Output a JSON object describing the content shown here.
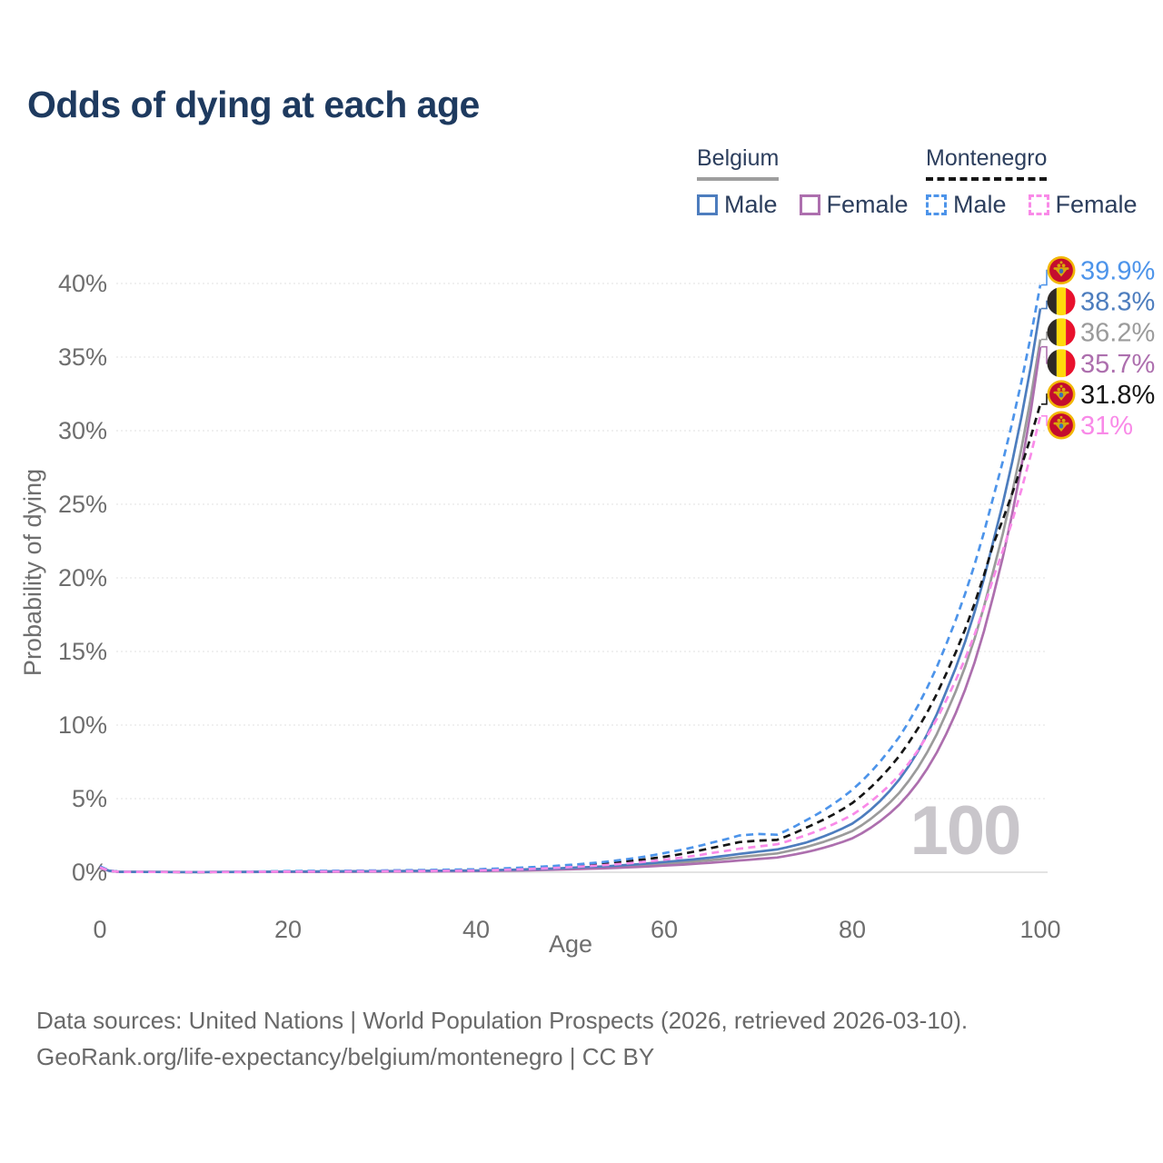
{
  "header": {
    "title": "Odds of dying at each age"
  },
  "legend": {
    "groups": [
      {
        "label": "Belgium",
        "line_style": "solid",
        "items": [
          {
            "label": "Male",
            "color": "#4d7dbe"
          },
          {
            "label": "Female",
            "color": "#ad6fae"
          }
        ]
      },
      {
        "label": "Montenegro",
        "line_style": "dashed",
        "items": [
          {
            "label": "Male",
            "color": "#4d94ea"
          },
          {
            "label": "Female",
            "color": "#f98ae8"
          }
        ]
      }
    ]
  },
  "chart_data": {
    "type": "line",
    "title": "Odds of dying at each age",
    "xlabel": "Age",
    "ylabel": "Probability of dying",
    "xlim": [
      0,
      100
    ],
    "ylim_percent": [
      0,
      40
    ],
    "x_ticks": [
      "0",
      "20",
      "40",
      "60",
      "80",
      "100"
    ],
    "y_ticks": [
      "0%",
      "5%",
      "10%",
      "15%",
      "20%",
      "25%",
      "30%",
      "35%",
      "40%"
    ],
    "grid": true,
    "legend_position": "top-right",
    "watermark": "100",
    "ages": [
      0,
      2,
      10,
      20,
      30,
      40,
      50,
      55,
      60,
      65,
      68,
      70,
      72,
      75,
      80,
      85,
      90,
      95,
      100
    ],
    "series": [
      {
        "name": "Montenegro Male",
        "country": "montenegro",
        "sex": "male",
        "color": "#4d94ea",
        "dashed": true,
        "end_label": "39.9%",
        "values_percent": [
          0.4,
          0.035,
          0.015,
          0.08,
          0.12,
          0.2,
          0.5,
          0.8,
          1.3,
          2.0,
          2.5,
          2.6,
          2.55,
          3.5,
          5.6,
          9.2,
          15.5,
          25.5,
          39.9
        ]
      },
      {
        "name": "Belgium Male",
        "country": "belgium",
        "sex": "male",
        "color": "#4d7dbe",
        "dashed": false,
        "end_label": "38.3%",
        "values_percent": [
          0.33,
          0.03,
          0.012,
          0.05,
          0.08,
          0.12,
          0.3,
          0.45,
          0.7,
          1.0,
          1.25,
          1.4,
          1.55,
          2.0,
          3.3,
          6.3,
          12.3,
          22.5,
          38.3
        ]
      },
      {
        "name": "Belgium",
        "country": "belgium",
        "sex": "total",
        "color": "#9b9b9b",
        "dashed": false,
        "end_label": "36.2%",
        "values_percent": [
          0.3,
          0.028,
          0.011,
          0.035,
          0.06,
          0.1,
          0.25,
          0.38,
          0.58,
          0.83,
          1.03,
          1.15,
          1.28,
          1.7,
          2.8,
          5.4,
          10.8,
          20.5,
          36.2
        ]
      },
      {
        "name": "Belgium Female",
        "country": "belgium",
        "sex": "female",
        "color": "#ad6fae",
        "dashed": false,
        "end_label": "35.7%",
        "values_percent": [
          0.28,
          0.025,
          0.01,
          0.02,
          0.04,
          0.08,
          0.2,
          0.3,
          0.45,
          0.65,
          0.8,
          0.9,
          1.0,
          1.35,
          2.3,
          4.6,
          9.4,
          18.8,
          35.7
        ]
      },
      {
        "name": "Montenegro",
        "country": "montenegro",
        "sex": "total",
        "color": "#161616",
        "dashed": true,
        "end_label": "31.8%",
        "values_percent": [
          0.37,
          0.032,
          0.013,
          0.06,
          0.1,
          0.16,
          0.42,
          0.68,
          1.05,
          1.65,
          2.05,
          2.15,
          2.2,
          3.0,
          4.7,
          7.9,
          13.5,
          22.3,
          31.8
        ]
      },
      {
        "name": "Montenegro Female",
        "country": "montenegro",
        "sex": "female",
        "color": "#f98ae8",
        "dashed": true,
        "end_label": "31%",
        "values_percent": [
          0.33,
          0.03,
          0.012,
          0.04,
          0.07,
          0.12,
          0.35,
          0.55,
          0.85,
          1.3,
          1.6,
          1.75,
          1.9,
          2.5,
          3.9,
          6.6,
          11.7,
          20.0,
          31.0
        ]
      }
    ],
    "colors": {
      "grid": "#ececec",
      "baseline": "#dadada",
      "tick_text": "#6e6e6e",
      "watermark": "#c9c6cb"
    }
  },
  "footer": {
    "line1": "Data sources: United Nations | World Population Prospects (2026, retrieved 2026-03-10).",
    "line2": "GeoRank.org/life-expectancy/belgium/montenegro | CC BY"
  }
}
